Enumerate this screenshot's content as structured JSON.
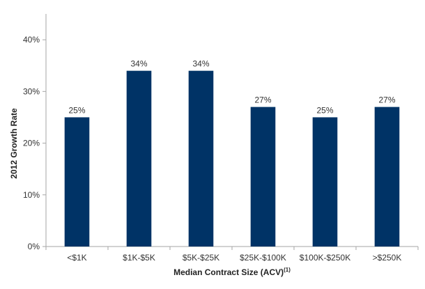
{
  "chart_data": {
    "type": "bar",
    "categories": [
      "<$1K",
      "$1K-$5K",
      "$5K-$25K",
      "$25K-$100K",
      "$100K-$250K",
      ">$250K"
    ],
    "values": [
      25,
      34,
      34,
      27,
      25,
      27
    ],
    "data_labels": [
      "25%",
      "34%",
      "34%",
      "27%",
      "25%",
      "27%"
    ],
    "title": "",
    "xlabel": "Median Contract Size (ACV)",
    "xlabel_superscript": "(1)",
    "ylabel": "2012 Growth Rate",
    "ylim": [
      0,
      45
    ],
    "yticks": [
      0,
      10,
      20,
      30,
      40
    ],
    "ytick_labels": [
      "0%",
      "10%",
      "20%",
      "30%",
      "40%"
    ],
    "grid": false,
    "bar_color": "#003366",
    "axis_color": "#a6a6a6"
  }
}
